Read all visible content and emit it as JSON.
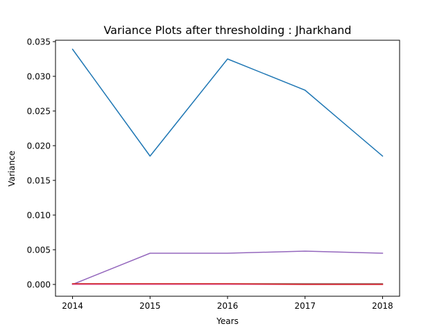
{
  "chart_data": {
    "type": "line",
    "title": "Variance Plots after thresholding : Jharkhand",
    "xlabel": "Years",
    "ylabel": "Variance",
    "x": [
      2014,
      2015,
      2016,
      2017,
      2018
    ],
    "x_tick_labels": [
      "2014",
      "2015",
      "2016",
      "2017",
      "2018"
    ],
    "y_tick_values": [
      0.0,
      0.005,
      0.01,
      0.015,
      0.02,
      0.025,
      0.03,
      0.035
    ],
    "y_tick_labels": [
      "0.000",
      "0.005",
      "0.010",
      "0.015",
      "0.020",
      "0.025",
      "0.030",
      "0.035"
    ],
    "xlim": [
      2013.78,
      2018.22
    ],
    "ylim": [
      -0.0017,
      0.0352
    ],
    "grid": false,
    "legend": "none",
    "series": [
      {
        "color": "#1f77b4",
        "values": [
          0.0339,
          0.0185,
          0.0325,
          0.028,
          0.0185
        ]
      },
      {
        "color": "#9467bd",
        "values": [
          0.0,
          0.0045,
          0.0045,
          0.0048,
          0.0045
        ]
      },
      {
        "color": "#8c564b",
        "values": [
          0.0001,
          0.0001,
          0.0001,
          0.0001,
          0.0001
        ]
      },
      {
        "color": "#e377c2",
        "values": [
          0.0,
          0.0,
          0.0,
          0.0,
          0.0
        ]
      },
      {
        "color": "#d62728",
        "values": [
          0.0001,
          0.0001,
          0.0001,
          0.0,
          0.0
        ]
      }
    ]
  }
}
